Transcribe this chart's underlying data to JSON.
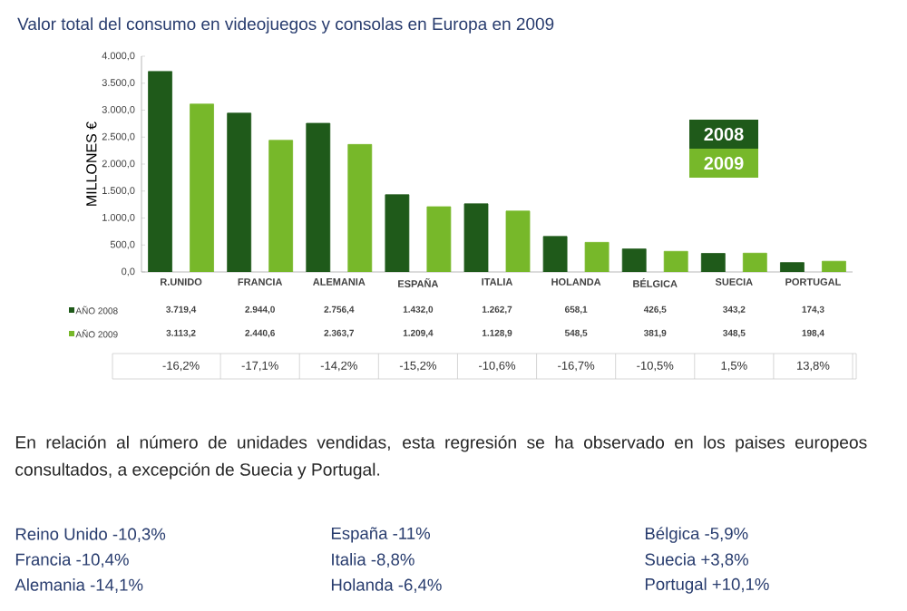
{
  "chart_data": {
    "type": "bar",
    "title": "Valor total del consumo en videojuegos y consolas en Europa en 2009",
    "ylabel": "MILLONES €",
    "categories": [
      "R.UNIDO",
      "FRANCIA",
      "ALEMANIA",
      "ESPAÑA",
      "ITALIA",
      "HOLANDA",
      "BÉLGICA",
      "SUECIA",
      "PORTUGAL"
    ],
    "series": [
      {
        "name": "AÑO 2008",
        "color": "#1f5a1a",
        "values": [
          3719.4,
          2944.0,
          2756.4,
          1432.0,
          1262.7,
          658.1,
          426.5,
          343.2,
          174.3
        ],
        "value_labels": [
          "3.719,4",
          "2.944,0",
          "2.756,4",
          "1.432,0",
          "1.262,7",
          "658,1",
          "426,5",
          "343,2",
          "174,3"
        ]
      },
      {
        "name": "AÑO 2009",
        "color": "#77b82a",
        "values": [
          3113.2,
          2440.6,
          2363.7,
          1209.4,
          1128.9,
          548.5,
          381.9,
          348.5,
          198.4
        ],
        "value_labels": [
          "3.113,2",
          "2.440,6",
          "2.363,7",
          "1.209,4",
          "1.128,9",
          "548,5",
          "381,9",
          "348,5",
          "198,4"
        ]
      }
    ],
    "ylim": [
      0,
      4000
    ],
    "yticks": [
      {
        "value": 0,
        "label": "0,0"
      },
      {
        "value": 500,
        "label": "500,0"
      },
      {
        "value": 1000,
        "label": "1.000,0"
      },
      {
        "value": 1500,
        "label": "1.500,0"
      },
      {
        "value": 2000,
        "label": "2.000,0"
      },
      {
        "value": 2500,
        "label": "2.500,0"
      },
      {
        "value": 3000,
        "label": "3.000,0"
      },
      {
        "value": 3500,
        "label": "3.500,0"
      },
      {
        "value": 4000,
        "label": "4.000,0"
      }
    ],
    "grid": false,
    "legend": "bottom left",
    "annotations": [
      "-16,2%",
      "-17,1%",
      "-14,2%",
      "-15,2%",
      "-10,6%",
      "-16,7%",
      "-10,5%",
      "1,5%",
      "13,8%",
      "En relación al número de unidades vendidas, esta regresión se ha observado en los paises europeos consultados, a excepción de Suecia y Portugal.",
      "Reino Unido -10,3%",
      "Francia -10,4%",
      "Alemania -14,1%",
      "España -11%",
      "Italia -8,8%",
      "Holanda -6,4%",
      "Bélgica -5,9%",
      "Suecia +3,8%",
      "Portugal +10,1%",
      "2008",
      "2009"
    ]
  }
}
